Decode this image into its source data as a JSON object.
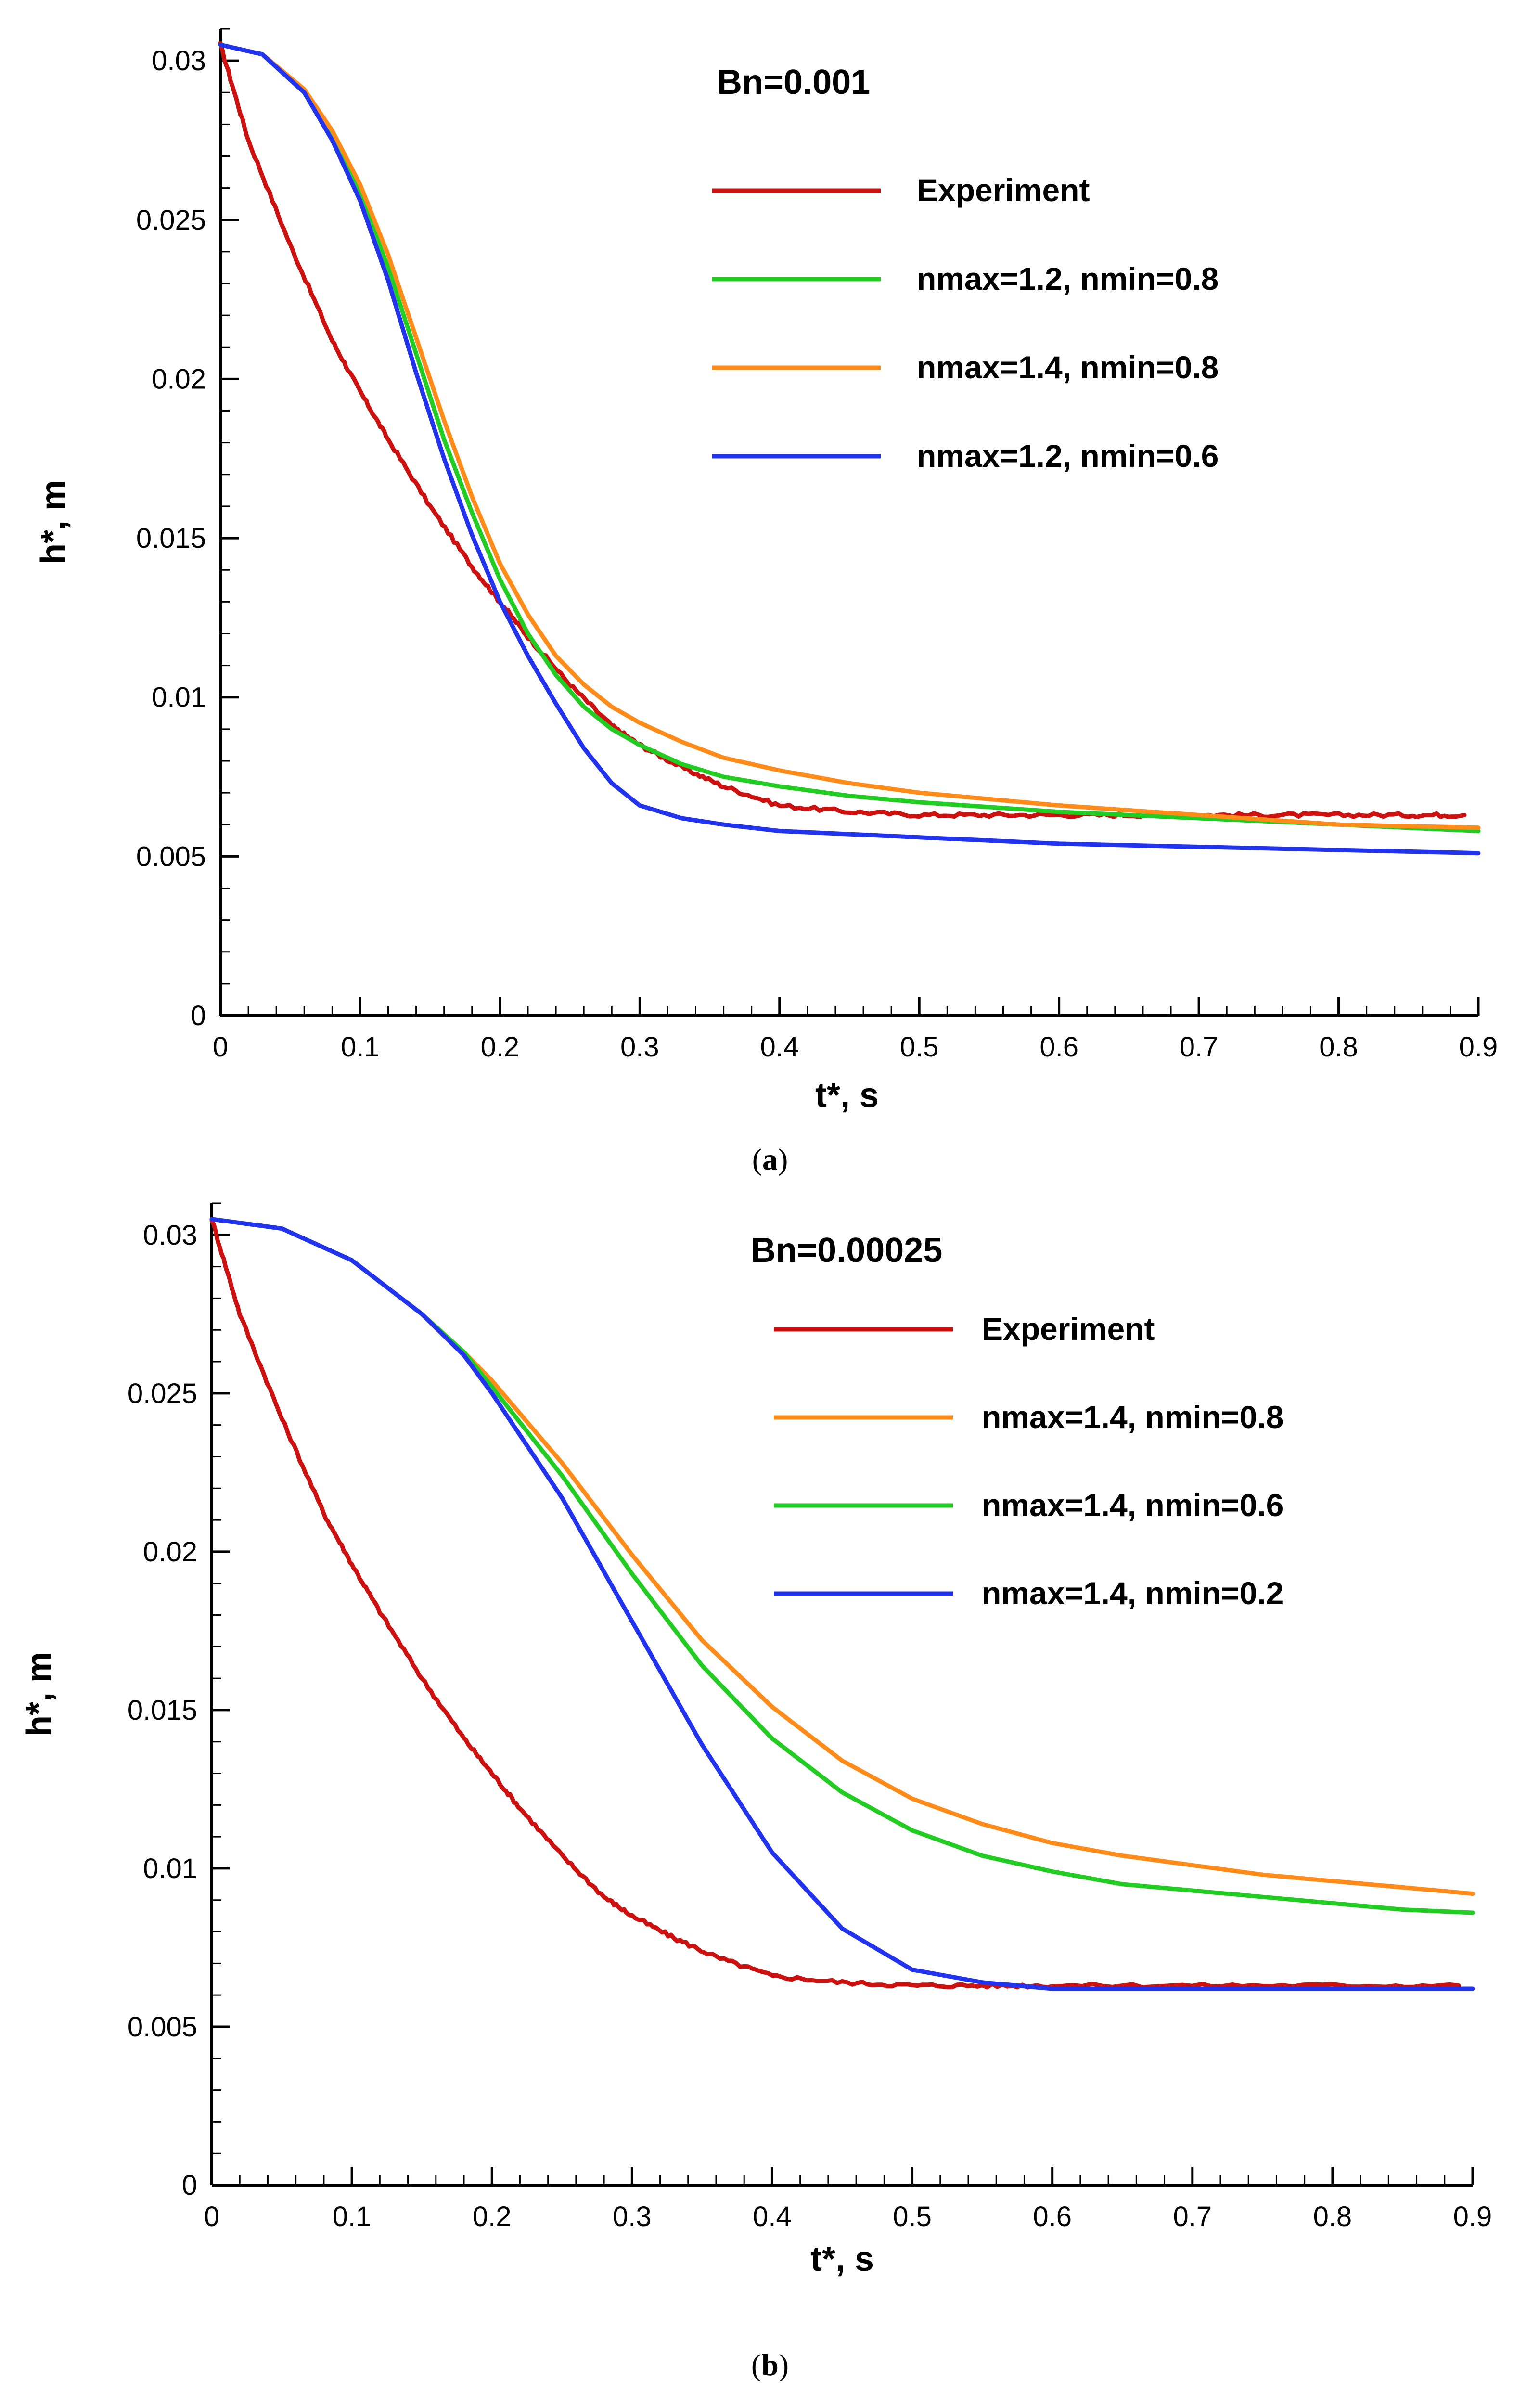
{
  "chart_data": [
    {
      "type": "line",
      "panel": "a",
      "panel_caption": {
        "open": "(",
        "letter": "a",
        "close": ")"
      },
      "title": "Bn=0.001",
      "xlabel": "t*, s",
      "ylabel": "h*, m",
      "xlim": [
        0,
        0.9
      ],
      "ylim": [
        0,
        0.031
      ],
      "xticks": [
        "0",
        "0.1",
        "0.2",
        "0.3",
        "0.4",
        "0.5",
        "0.6",
        "0.7",
        "0.8",
        "0.9"
      ],
      "yticks": [
        "0",
        "0.005",
        "0.01",
        "0.015",
        "0.02",
        "0.025",
        "0.03"
      ],
      "legend_position": "top-right",
      "series": [
        {
          "name": "Experiment",
          "color": "#cc1111",
          "noisy": true,
          "x": [
            0,
            0.02,
            0.05,
            0.08,
            0.1,
            0.12,
            0.15,
            0.18,
            0.2,
            0.22,
            0.25,
            0.28,
            0.3,
            0.33,
            0.36,
            0.4,
            0.45,
            0.5,
            0.55,
            0.6,
            0.65,
            0.7,
            0.75,
            0.8,
            0.85,
            0.89
          ],
          "y": [
            0.0305,
            0.0275,
            0.0242,
            0.0212,
            0.0196,
            0.0181,
            0.016,
            0.0141,
            0.013,
            0.0119,
            0.0104,
            0.0091,
            0.0085,
            0.0078,
            0.0072,
            0.0066,
            0.0064,
            0.0063,
            0.0063,
            0.0063,
            0.0063,
            0.0063,
            0.0063,
            0.0063,
            0.0063,
            0.0063
          ]
        },
        {
          "name": "nmax=1.2, nmin=0.8",
          "color": "#22cc22",
          "x": [
            0,
            0.03,
            0.06,
            0.08,
            0.1,
            0.12,
            0.14,
            0.16,
            0.18,
            0.2,
            0.22,
            0.24,
            0.26,
            0.28,
            0.3,
            0.33,
            0.36,
            0.4,
            0.45,
            0.5,
            0.6,
            0.7,
            0.8,
            0.9
          ],
          "y": [
            0.0305,
            0.0302,
            0.029,
            0.0276,
            0.0258,
            0.0235,
            0.0208,
            0.0181,
            0.0158,
            0.0137,
            0.012,
            0.0107,
            0.0097,
            0.009,
            0.0085,
            0.0079,
            0.0075,
            0.0072,
            0.0069,
            0.0067,
            0.0064,
            0.0062,
            0.006,
            0.0058
          ]
        },
        {
          "name": "nmax=1.4, nmin=0.8",
          "color": "#ff8c1a",
          "x": [
            0,
            0.03,
            0.06,
            0.08,
            0.1,
            0.12,
            0.14,
            0.16,
            0.18,
            0.2,
            0.22,
            0.24,
            0.26,
            0.28,
            0.3,
            0.33,
            0.36,
            0.4,
            0.45,
            0.5,
            0.6,
            0.7,
            0.8,
            0.9
          ],
          "y": [
            0.0305,
            0.0302,
            0.0291,
            0.0278,
            0.0261,
            0.0239,
            0.0213,
            0.0187,
            0.0163,
            0.0142,
            0.0126,
            0.0113,
            0.0104,
            0.0097,
            0.0092,
            0.0086,
            0.0081,
            0.0077,
            0.0073,
            0.007,
            0.0066,
            0.0063,
            0.006,
            0.0059
          ]
        },
        {
          "name": "nmax=1.2, nmin=0.6",
          "color": "#2233ee",
          "x": [
            0,
            0.03,
            0.06,
            0.08,
            0.1,
            0.12,
            0.14,
            0.16,
            0.18,
            0.2,
            0.22,
            0.24,
            0.26,
            0.28,
            0.3,
            0.33,
            0.36,
            0.4,
            0.45,
            0.5,
            0.6,
            0.7,
            0.8,
            0.9
          ],
          "y": [
            0.0305,
            0.0302,
            0.029,
            0.0275,
            0.0256,
            0.0231,
            0.0202,
            0.0175,
            0.0151,
            0.013,
            0.0113,
            0.0098,
            0.0084,
            0.0073,
            0.0066,
            0.0062,
            0.006,
            0.0058,
            0.0057,
            0.0056,
            0.0054,
            0.0053,
            0.0052,
            0.0051
          ]
        }
      ]
    },
    {
      "type": "line",
      "panel": "b",
      "panel_caption": {
        "open": "(",
        "letter": "b",
        "close": ")"
      },
      "title": "Bn=0.00025",
      "xlabel": "t*, s",
      "ylabel": "h*, m",
      "xlim": [
        0,
        0.9
      ],
      "ylim": [
        0,
        0.031
      ],
      "xticks": [
        "0",
        "0.1",
        "0.2",
        "0.3",
        "0.4",
        "0.5",
        "0.6",
        "0.7",
        "0.8",
        "0.9"
      ],
      "yticks": [
        "0",
        "0.005",
        "0.01",
        "0.015",
        "0.02",
        "0.025",
        "0.03"
      ],
      "legend_position": "top-right",
      "series": [
        {
          "name": "Experiment",
          "color": "#cc1111",
          "noisy": true,
          "x": [
            0,
            0.02,
            0.05,
            0.08,
            0.1,
            0.12,
            0.15,
            0.18,
            0.2,
            0.22,
            0.25,
            0.28,
            0.3,
            0.33,
            0.36,
            0.4,
            0.45,
            0.5,
            0.55,
            0.6,
            0.7,
            0.8,
            0.89
          ],
          "y": [
            0.0305,
            0.0275,
            0.0242,
            0.0212,
            0.0196,
            0.0181,
            0.016,
            0.0141,
            0.013,
            0.0119,
            0.0104,
            0.0091,
            0.0085,
            0.0078,
            0.0072,
            0.0066,
            0.0064,
            0.0063,
            0.0063,
            0.0063,
            0.0063,
            0.0063,
            0.0063
          ]
        },
        {
          "name": "nmax=1.4, nmin=0.8",
          "color": "#ff8c1a",
          "x": [
            0,
            0.05,
            0.1,
            0.15,
            0.18,
            0.2,
            0.25,
            0.3,
            0.35,
            0.4,
            0.45,
            0.5,
            0.55,
            0.6,
            0.65,
            0.7,
            0.75,
            0.8,
            0.85,
            0.9
          ],
          "y": [
            0.0305,
            0.0302,
            0.0292,
            0.0275,
            0.0263,
            0.0254,
            0.0228,
            0.0199,
            0.0172,
            0.0151,
            0.0134,
            0.0122,
            0.0114,
            0.0108,
            0.0104,
            0.0101,
            0.0098,
            0.0096,
            0.0094,
            0.0092
          ]
        },
        {
          "name": "nmax=1.4, nmin=0.6",
          "color": "#22cc22",
          "x": [
            0,
            0.05,
            0.1,
            0.15,
            0.18,
            0.2,
            0.25,
            0.3,
            0.35,
            0.4,
            0.45,
            0.5,
            0.55,
            0.6,
            0.65,
            0.7,
            0.75,
            0.8,
            0.85,
            0.9
          ],
          "y": [
            0.0305,
            0.0302,
            0.0292,
            0.0275,
            0.0263,
            0.0252,
            0.0224,
            0.0193,
            0.0164,
            0.0141,
            0.0124,
            0.0112,
            0.0104,
            0.0099,
            0.0095,
            0.0093,
            0.0091,
            0.0089,
            0.0087,
            0.0086
          ]
        },
        {
          "name": "nmax=1.4, nmin=0.2",
          "color": "#2233ee",
          "x": [
            0,
            0.05,
            0.1,
            0.15,
            0.18,
            0.2,
            0.25,
            0.3,
            0.35,
            0.4,
            0.45,
            0.5,
            0.55,
            0.6,
            0.65,
            0.7,
            0.8,
            0.9
          ],
          "y": [
            0.0305,
            0.0302,
            0.0292,
            0.0275,
            0.0262,
            0.025,
            0.0217,
            0.0178,
            0.0139,
            0.0105,
            0.0081,
            0.0068,
            0.0064,
            0.0062,
            0.0062,
            0.0062,
            0.0062,
            0.0062
          ]
        }
      ]
    }
  ]
}
